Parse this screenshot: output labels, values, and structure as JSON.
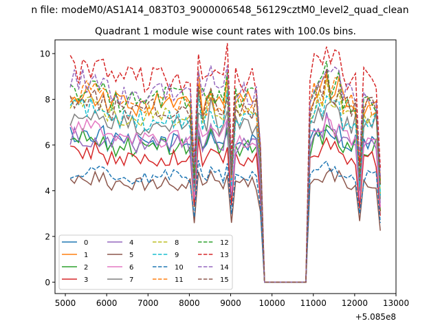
{
  "figure": {
    "suptitle": "n file: modeM0/AS1A14_083T03_9000006548_56129cztM0_level2_quad_clean",
    "title": "Quadrant 1 module wise count rates with 100.0s bins.",
    "offset_label": "+5.085e8"
  },
  "chart_data": {
    "type": "line",
    "title": "Quadrant 1 module wise count rates with 100.0s bins.",
    "xlabel": "",
    "ylabel": "",
    "x_offset": 508500000,
    "xlim": [
      4750,
      13000
    ],
    "ylim": [
      -0.5,
      10.6
    ],
    "xticks": [
      5000,
      6000,
      7000,
      8000,
      9000,
      10000,
      11000,
      12000,
      13000
    ],
    "xtick_labels": [
      "5000",
      "6000",
      "7000",
      "8000",
      "9000",
      "10000",
      "11000",
      "12000",
      "13000"
    ],
    "yticks": [
      0,
      2,
      4,
      6,
      8,
      10
    ],
    "ytick_labels": [
      "0",
      "2",
      "4",
      "6",
      "8",
      "10"
    ],
    "grid": false,
    "legend_placement": "lower-left",
    "legend_columns": 4,
    "time_points": {
      "start": 5120,
      "step": 100,
      "gap_start": 9820,
      "gap_end": 10820,
      "resume": 10920,
      "end": 12620
    },
    "series": [
      {
        "name": "0",
        "color": "#1f77b4",
        "dash": "solid",
        "level": 6.1
      },
      {
        "name": "1",
        "color": "#ff7f0e",
        "dash": "solid",
        "level": 7.8
      },
      {
        "name": "2",
        "color": "#2ca02c",
        "dash": "solid",
        "level": 5.9
      },
      {
        "name": "3",
        "color": "#d62728",
        "dash": "solid",
        "level": 5.4
      },
      {
        "name": "4",
        "color": "#9467bd",
        "dash": "solid",
        "level": 6.0
      },
      {
        "name": "5",
        "color": "#8c564b",
        "dash": "solid",
        "level": 4.3
      },
      {
        "name": "6",
        "color": "#e377c2",
        "dash": "solid",
        "level": 6.3
      },
      {
        "name": "7",
        "color": "#7f7f7f",
        "dash": "solid",
        "level": 6.9
      },
      {
        "name": "8",
        "color": "#bcbd22",
        "dash": "dashed",
        "level": 7.3
      },
      {
        "name": "9",
        "color": "#17becf",
        "dash": "dashed",
        "level": 7.1
      },
      {
        "name": "10",
        "color": "#1f77b4",
        "dash": "dashed",
        "level": 4.6
      },
      {
        "name": "11",
        "color": "#ff7f0e",
        "dash": "dashed",
        "level": 7.8
      },
      {
        "name": "12",
        "color": "#2ca02c",
        "dash": "dashed",
        "level": 8.0
      },
      {
        "name": "13",
        "color": "#d62728",
        "dash": "dashed",
        "level": 8.8
      },
      {
        "name": "14",
        "color": "#9467bd",
        "dash": "dashed",
        "level": 8.3
      },
      {
        "name": "15",
        "color": "#8c564b",
        "dash": "dashed",
        "level": 7.6
      }
    ]
  }
}
